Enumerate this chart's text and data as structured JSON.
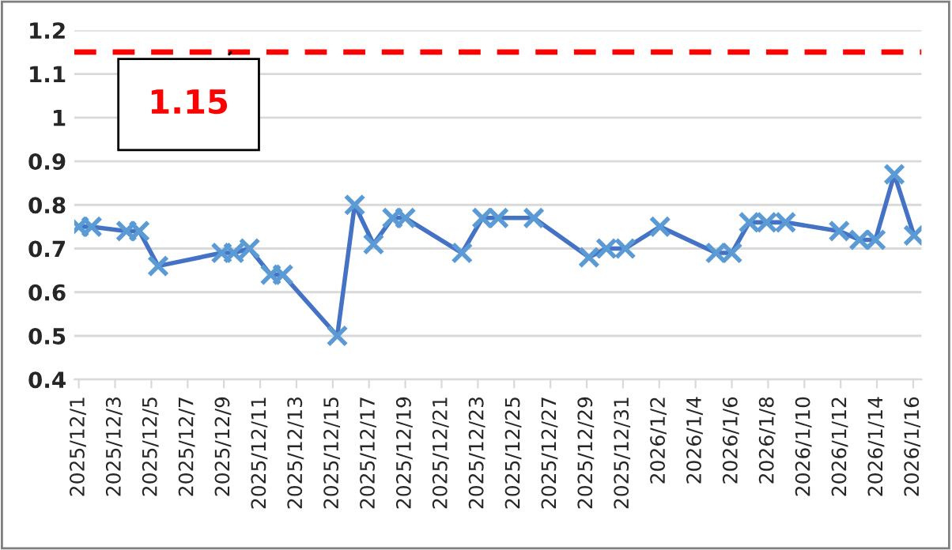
{
  "chart_data": {
    "type": "line",
    "x": [
      "2025-12-01T00:00",
      "2025-12-01T17:00",
      "2025-12-03T15:00",
      "2025-12-04T08:00",
      "2025-12-05T09:00",
      "2025-12-08T21:00",
      "2025-12-09T13:00",
      "2025-12-10T10:00",
      "2025-12-11T14:00",
      "2025-12-12T06:00",
      "2025-12-15T06:00",
      "2025-12-16T05:00",
      "2025-12-17T06:00",
      "2025-12-18T07:00",
      "2025-12-19T00:00",
      "2025-12-22T03:00",
      "2025-12-23T06:00",
      "2025-12-24T03:00",
      "2025-12-26T02:00",
      "2025-12-29T03:00",
      "2025-12-30T02:00",
      "2025-12-31T03:00",
      "2026-01-02T01:00",
      "2026-01-05T03:00",
      "2026-01-06T00:00",
      "2026-01-06T23:00",
      "2026-01-07T22:00",
      "2026-01-08T23:00",
      "2026-01-11T22:00",
      "2026-01-13T01:00",
      "2026-01-13T22:00",
      "2026-01-14T23:00",
      "2026-01-16T01:00"
    ],
    "series": [
      {
        "color": "#4472c4",
        "values": [
          0.75,
          0.75,
          0.74,
          0.74,
          0.66,
          0.69,
          0.69,
          0.7,
          0.64,
          0.64,
          0.5,
          0.8,
          0.71,
          0.77,
          0.77,
          0.69,
          0.77,
          0.77,
          0.77,
          0.68,
          0.7,
          0.7,
          0.75,
          0.69,
          0.69,
          0.76,
          0.76,
          0.76,
          0.74,
          0.72,
          0.72,
          0.87,
          0.73
        ]
      }
    ],
    "marker": "cross",
    "line_style": "solid",
    "xlim": [
      "2025-11-30T18:00",
      "2026-01-16T11:00"
    ],
    "xticks": [
      {
        "value": "2025-12-01",
        "label": "2025/12/1"
      },
      {
        "value": "2025-12-03",
        "label": "2025/12/3"
      },
      {
        "value": "2025-12-05",
        "label": "2025/12/5"
      },
      {
        "value": "2025-12-07",
        "label": "2025/12/7"
      },
      {
        "value": "2025-12-09",
        "label": "2025/12/9"
      },
      {
        "value": "2025-12-11",
        "label": "2025/12/11"
      },
      {
        "value": "2025-12-13",
        "label": "2025/12/13"
      },
      {
        "value": "2025-12-15",
        "label": "2025/12/15"
      },
      {
        "value": "2025-12-17",
        "label": "2025/12/17"
      },
      {
        "value": "2025-12-19",
        "label": "2025/12/19"
      },
      {
        "value": "2025-12-21",
        "label": "2025/12/21"
      },
      {
        "value": "2025-12-23",
        "label": "2025/12/23"
      },
      {
        "value": "2025-12-25",
        "label": "2025/12/25"
      },
      {
        "value": "2025-12-27",
        "label": "2025/12/27"
      },
      {
        "value": "2025-12-29",
        "label": "2025/12/29"
      },
      {
        "value": "2025-12-31",
        "label": "2025/12/31"
      },
      {
        "value": "2026-01-02",
        "label": "2026/1/2"
      },
      {
        "value": "2026-01-04",
        "label": "2026/1/4"
      },
      {
        "value": "2026-01-06",
        "label": "2026/1/6"
      },
      {
        "value": "2026-01-08",
        "label": "2026/1/8"
      },
      {
        "value": "2026-01-10",
        "label": "2026/1/10"
      },
      {
        "value": "2026-01-12",
        "label": "2026/1/12"
      },
      {
        "value": "2026-01-14",
        "label": "2026/1/14"
      },
      {
        "value": "2026-01-16",
        "label": "2026/1/16"
      }
    ],
    "ylim": [
      0.4,
      1.2
    ],
    "yticks": [
      0.4,
      0.5,
      0.6,
      0.7,
      0.8,
      0.9,
      {
        "value": 1,
        "label": "1"
      },
      1.1,
      1.2
    ],
    "grid": "y",
    "legend": false,
    "ref_lines": [
      {
        "axis": "y",
        "value": 1.15,
        "label": "1.15",
        "color": "#ff0000",
        "line_style": "dashed"
      }
    ]
  }
}
